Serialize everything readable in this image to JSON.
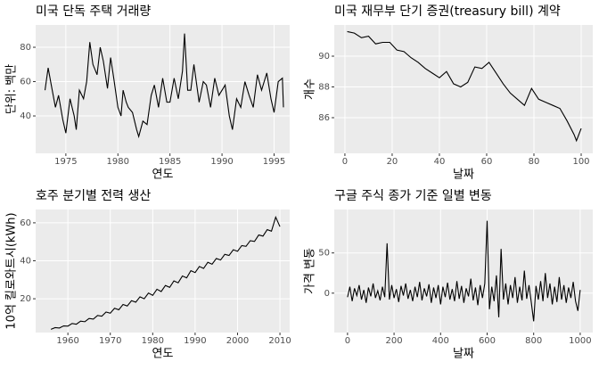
{
  "chart_data": [
    {
      "type": "line",
      "title": "미국 단독 주택 거래량",
      "x_label": "연도",
      "y_label": "단위: 백만",
      "grid": true,
      "x": [
        1973.0,
        1973.3,
        1973.6,
        1974.0,
        1974.3,
        1974.7,
        1975.0,
        1975.4,
        1975.8,
        1976.0,
        1976.3,
        1976.7,
        1977.0,
        1977.3,
        1977.6,
        1978.0,
        1978.3,
        1978.6,
        1979.0,
        1979.3,
        1979.6,
        1980.0,
        1980.3,
        1980.5,
        1980.8,
        1981.0,
        1981.4,
        1981.8,
        1982.0,
        1982.4,
        1982.8,
        1983.2,
        1983.5,
        1983.9,
        1984.3,
        1984.7,
        1985.0,
        1985.4,
        1985.8,
        1986.2,
        1986.4,
        1986.7,
        1987.0,
        1987.3,
        1987.8,
        1988.2,
        1988.5,
        1988.9,
        1989.3,
        1989.7,
        1990.0,
        1990.3,
        1990.7,
        1991.0,
        1991.4,
        1991.8,
        1992.2,
        1992.6,
        1993.0,
        1993.4,
        1993.8,
        1994.3,
        1994.7,
        1995.0,
        1995.4,
        1995.8,
        1995.9
      ],
      "series": [
        {
          "color": "#000000",
          "values": [
            55,
            68,
            58,
            45,
            52,
            38,
            30,
            50,
            40,
            32,
            55,
            50,
            60,
            83,
            70,
            64,
            80,
            72,
            56,
            74,
            62,
            45,
            40,
            55,
            48,
            45,
            42,
            32,
            28,
            37,
            35,
            52,
            58,
            45,
            62,
            48,
            48,
            62,
            50,
            66,
            88,
            55,
            55,
            70,
            48,
            60,
            58,
            45,
            62,
            52,
            55,
            58,
            40,
            32,
            50,
            45,
            60,
            52,
            45,
            64,
            55,
            65,
            50,
            42,
            60,
            62,
            45
          ]
        }
      ],
      "xlim": [
        1972.1,
        1996.5
      ],
      "xticks": [
        1975,
        1980,
        1985,
        1990,
        1995
      ],
      "ylim": [
        18.2,
        93
      ],
      "yticks": [
        40,
        60,
        80
      ]
    },
    {
      "type": "line",
      "title": "미국 재무부 단기 증권(treasury bill) 계약",
      "x_label": "날짜",
      "y_label": "개수",
      "grid": true,
      "x": [
        1,
        4,
        7,
        10,
        13,
        16,
        19,
        22,
        25,
        28,
        31,
        34,
        37,
        40,
        43,
        46,
        49,
        52,
        55,
        58,
        61,
        64,
        67,
        70,
        73,
        76,
        79,
        82,
        85,
        88,
        91,
        94,
        97,
        98,
        100
      ],
      "series": [
        {
          "color": "#000000",
          "values": [
            91.6,
            91.5,
            91.2,
            91.3,
            90.8,
            90.9,
            90.9,
            90.4,
            90.3,
            89.9,
            89.6,
            89.2,
            88.9,
            88.6,
            89.0,
            88.2,
            88.0,
            88.3,
            89.3,
            89.2,
            89.6,
            88.9,
            88.2,
            87.6,
            87.2,
            86.8,
            87.9,
            87.2,
            87.0,
            86.8,
            86.6,
            85.8,
            84.9,
            84.5,
            85.3
          ]
        }
      ],
      "xlim": [
        -4.5,
        104.9
      ],
      "xticks": [
        0,
        20,
        40,
        60,
        80,
        100
      ],
      "ylim": [
        83.68,
        92.03
      ],
      "yticks": [
        86,
        88,
        90
      ]
    },
    {
      "type": "line",
      "title": "호주 분기별 전력 생산",
      "x_label": "연도",
      "y_label": "10억 킬로와트시(kWh)",
      "grid": true,
      "x": [
        1956,
        1957,
        1958,
        1959,
        1960,
        1961,
        1962,
        1963,
        1964,
        1965,
        1966,
        1967,
        1968,
        1969,
        1970,
        1971,
        1972,
        1973,
        1974,
        1975,
        1976,
        1977,
        1978,
        1979,
        1980,
        1981,
        1982,
        1983,
        1984,
        1985,
        1986,
        1987,
        1988,
        1989,
        1990,
        1991,
        1992,
        1993,
        1994,
        1995,
        1996,
        1997,
        1998,
        1999,
        2000,
        2001,
        2002,
        2003,
        2004,
        2005,
        2006,
        2007,
        2008,
        2009,
        2010
      ],
      "series": [
        {
          "color": "#000000",
          "values": [
            3.9,
            4.8,
            4.6,
            5.7,
            5.6,
            7.0,
            6.6,
            8.2,
            7.9,
            9.6,
            9.3,
            11.2,
            10.8,
            13.0,
            12.4,
            15.0,
            14.2,
            17.0,
            16.2,
            19.0,
            18.2,
            21.0,
            20.0,
            23.0,
            21.8,
            25.0,
            23.8,
            27.0,
            26.0,
            29.4,
            28.4,
            32.0,
            31.0,
            34.8,
            33.8,
            37.0,
            36.0,
            39.2,
            38.2,
            41.2,
            40.4,
            43.4,
            42.8,
            45.8,
            45.0,
            48.0,
            47.6,
            50.6,
            50.2,
            53.6,
            53.0,
            56.4,
            55.6,
            63.0,
            58.0
          ]
        }
      ],
      "xlim": [
        1952.4,
        2012.3
      ],
      "xticks": [
        1960,
        1970,
        1980,
        1990,
        2000,
        2010
      ],
      "ylim": [
        2.2,
        67
      ],
      "yticks": [
        20,
        40,
        60
      ]
    },
    {
      "type": "line",
      "title": "구글 주식 종가 기준 일별 변동",
      "x_label": "날짜",
      "y_label": "가격 변동",
      "grid": true,
      "x": [
        0,
        10,
        20,
        30,
        40,
        50,
        60,
        70,
        80,
        90,
        100,
        110,
        120,
        130,
        140,
        150,
        160,
        170,
        180,
        190,
        200,
        210,
        220,
        230,
        240,
        250,
        260,
        270,
        280,
        290,
        300,
        310,
        320,
        330,
        340,
        350,
        360,
        370,
        380,
        390,
        400,
        410,
        420,
        430,
        440,
        450,
        460,
        470,
        480,
        490,
        500,
        510,
        520,
        530,
        540,
        550,
        560,
        570,
        580,
        590,
        600,
        610,
        620,
        630,
        640,
        650,
        660,
        670,
        680,
        690,
        700,
        710,
        720,
        730,
        740,
        750,
        760,
        770,
        780,
        790,
        800,
        810,
        820,
        830,
        840,
        850,
        860,
        870,
        880,
        890,
        900,
        910,
        920,
        930,
        940,
        950,
        960,
        970,
        980,
        990,
        1000
      ],
      "series": [
        {
          "color": "#000000",
          "values": [
            -5,
            8,
            -10,
            6,
            -3,
            10,
            -8,
            4,
            -12,
            7,
            -4,
            12,
            -6,
            3,
            -9,
            8,
            -5,
            62,
            -8,
            10,
            -6,
            5,
            -11,
            9,
            -3,
            12,
            -7,
            4,
            -10,
            8,
            -5,
            14,
            -9,
            6,
            -4,
            11,
            -12,
            7,
            -6,
            10,
            -14,
            8,
            -5,
            13,
            -8,
            5,
            -10,
            15,
            -7,
            9,
            -12,
            6,
            -4,
            18,
            -9,
            7,
            -15,
            10,
            -6,
            12,
            90,
            -20,
            8,
            -10,
            22,
            -30,
            55,
            -8,
            12,
            -14,
            10,
            -6,
            20,
            -12,
            8,
            -9,
            28,
            -7,
            10,
            -12,
            -35,
            9,
            -8,
            15,
            -10,
            25,
            -6,
            12,
            -14,
            8,
            -11,
            20,
            -8,
            10,
            -12,
            7,
            -6,
            14,
            -10,
            -22,
            4
          ]
        }
      ],
      "xlim": [
        -57,
        1054
      ],
      "xticks": [
        0,
        200,
        400,
        600,
        800,
        1000
      ],
      "ylim": [
        -49,
        104
      ],
      "yticks": [
        0,
        50
      ]
    }
  ]
}
